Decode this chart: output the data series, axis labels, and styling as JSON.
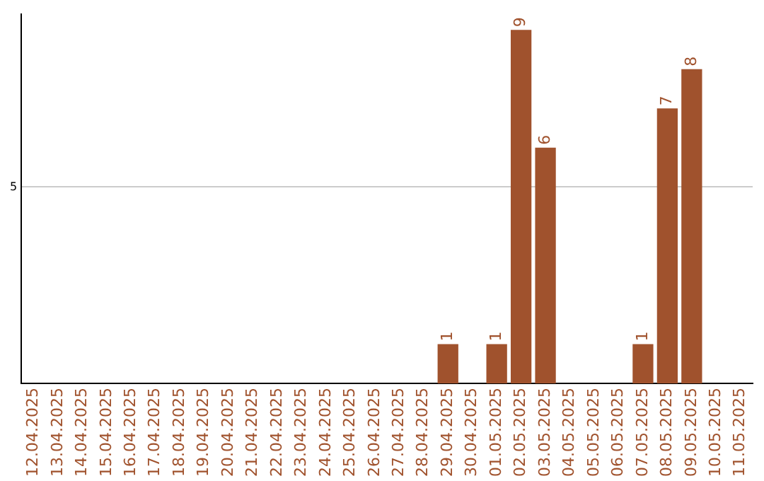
{
  "chart_data": {
    "type": "bar",
    "categories": [
      "12.04.2025",
      "13.04.2025",
      "14.04.2025",
      "15.04.2025",
      "16.04.2025",
      "17.04.2025",
      "18.04.2025",
      "19.04.2025",
      "20.04.2025",
      "21.04.2025",
      "22.04.2025",
      "23.04.2025",
      "24.04.2025",
      "25.04.2025",
      "26.04.2025",
      "27.04.2025",
      "28.04.2025",
      "29.04.2025",
      "30.04.2025",
      "01.05.2025",
      "02.05.2025",
      "03.05.2025",
      "04.05.2025",
      "05.05.2025",
      "06.05.2025",
      "07.05.2025",
      "08.05.2025",
      "09.05.2025",
      "10.05.2025",
      "11.05.2025"
    ],
    "values": [
      null,
      null,
      null,
      null,
      null,
      null,
      null,
      null,
      null,
      null,
      null,
      null,
      null,
      null,
      null,
      null,
      null,
      1,
      null,
      1,
      9,
      6,
      null,
      null,
      null,
      1,
      7,
      8,
      null,
      null
    ],
    "data_labels": true,
    "color": "#a0522d",
    "ylim": [
      0,
      9.4
    ],
    "yticks": [
      5
    ],
    "grid": "y"
  }
}
